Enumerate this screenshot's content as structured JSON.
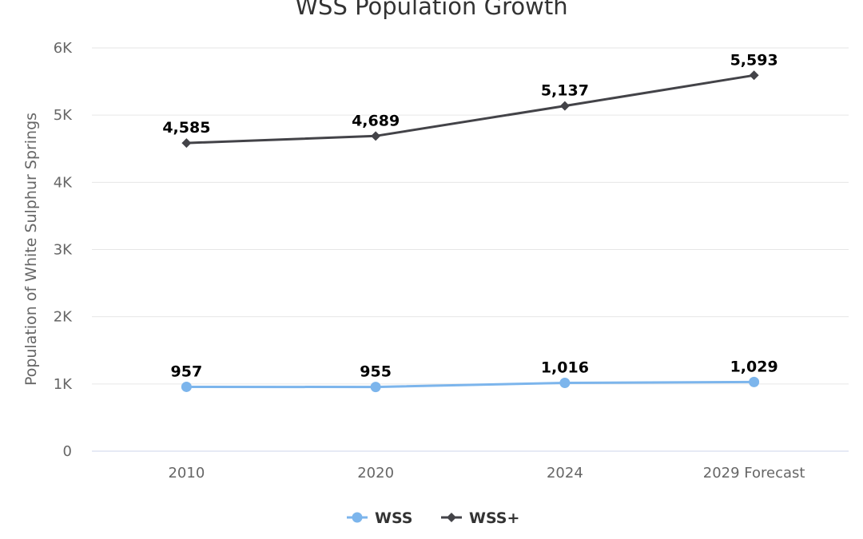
{
  "chart_data": {
    "type": "line",
    "title": "WSS Population Growth",
    "ylabel": "Population of White Sulphur Springs",
    "xlabel": "",
    "categories": [
      "2010",
      "2020",
      "2024",
      "2029 Forecast"
    ],
    "ylim": [
      0,
      6000
    ],
    "yticks": [
      0,
      1000,
      2000,
      3000,
      4000,
      5000,
      6000
    ],
    "ytick_labels": [
      "0",
      "1K",
      "2K",
      "3K",
      "4K",
      "5K",
      "6K"
    ],
    "grid": true,
    "legend_position": "bottom-center",
    "series": [
      {
        "name": "WSS",
        "values": [
          957,
          955,
          1016,
          1029
        ],
        "labels": [
          "957",
          "955",
          "1,016",
          "1,029"
        ],
        "color": "#7cb5ec",
        "marker": "circle"
      },
      {
        "name": "WSS+",
        "values": [
          4585,
          4689,
          5137,
          5593
        ],
        "labels": [
          "4,585",
          "4,689",
          "5,137",
          "5,593"
        ],
        "color": "#434348",
        "marker": "diamond"
      }
    ]
  }
}
